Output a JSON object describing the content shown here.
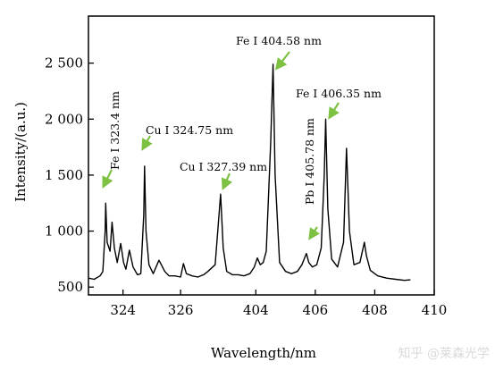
{
  "chart_data": {
    "type": "line",
    "xlabel": "Wavelength/nm",
    "ylabel": "Intensity/(a.u.)",
    "title": "",
    "x_ticks": [
      "324",
      "326",
      "404",
      "406",
      "408",
      "410"
    ],
    "y_ticks": [
      "500",
      "1 000",
      "1 500",
      "2 000",
      "2 500"
    ],
    "ylim": [
      430,
      2920
    ],
    "axis_break": "between 326 and 404 nm",
    "grid": false,
    "legend": "none",
    "series": [
      {
        "color": "#000000",
        "segments": [
          {
            "points": [
              [
                322.8,
                580
              ],
              [
                323.0,
                570
              ],
              [
                323.2,
                600
              ],
              [
                323.3,
                640
              ],
              [
                323.38,
                1000
              ],
              [
                323.4,
                1250
              ],
              [
                323.45,
                900
              ],
              [
                323.55,
                820
              ],
              [
                323.62,
                1080
              ],
              [
                323.7,
                850
              ],
              [
                323.8,
                720
              ],
              [
                323.92,
                890
              ],
              [
                324.02,
                720
              ],
              [
                324.1,
                660
              ],
              [
                324.22,
                830
              ],
              [
                324.35,
                680
              ],
              [
                324.5,
                610
              ],
              [
                324.62,
                620
              ],
              [
                324.72,
                1150
              ],
              [
                324.75,
                1580
              ],
              [
                324.8,
                1000
              ],
              [
                324.9,
                700
              ],
              [
                325.05,
                620
              ],
              [
                325.15,
                680
              ],
              [
                325.25,
                740
              ],
              [
                325.35,
                690
              ],
              [
                325.45,
                640
              ],
              [
                325.6,
                600
              ],
              [
                325.8,
                600
              ],
              [
                326.0,
                590
              ],
              [
                326.1,
                710
              ],
              [
                326.2,
                620
              ],
              [
                326.4,
                600
              ]
            ]
          },
          {
            "points": [
              [
                326.4,
                600
              ],
              [
                326.6,
                590
              ],
              [
                326.8,
                610
              ],
              [
                326.95,
                640
              ],
              [
                327.2,
                700
              ],
              [
                327.39,
                1330
              ],
              [
                327.48,
                850
              ],
              [
                327.6,
                640
              ],
              [
                327.8,
                610
              ],
              [
                328.0,
                610
              ],
              [
                328.2,
                600
              ]
            ]
          },
          {
            "points": [
              [
                403.6,
                600
              ],
              [
                403.8,
                620
              ],
              [
                403.95,
                680
              ],
              [
                404.05,
                760
              ],
              [
                404.15,
                700
              ],
              [
                404.25,
                720
              ],
              [
                404.35,
                820
              ],
              [
                404.5,
                1800
              ],
              [
                404.58,
                2490
              ],
              [
                404.65,
                1500
              ],
              [
                404.8,
                720
              ],
              [
                405.0,
                640
              ],
              [
                405.2,
                620
              ],
              [
                405.4,
                640
              ],
              [
                405.55,
                700
              ],
              [
                405.7,
                800
              ],
              [
                405.78,
                720
              ],
              [
                405.9,
                680
              ],
              [
                406.05,
                700
              ],
              [
                406.2,
                850
              ],
              [
                406.3,
                1500
              ],
              [
                406.35,
                2000
              ],
              [
                406.42,
                1200
              ],
              [
                406.55,
                750
              ],
              [
                406.75,
                680
              ],
              [
                406.95,
                900
              ],
              [
                407.05,
                1740
              ],
              [
                407.15,
                1000
              ],
              [
                407.3,
                700
              ],
              [
                407.5,
                720
              ],
              [
                407.65,
                900
              ],
              [
                407.72,
                780
              ],
              [
                407.85,
                650
              ],
              [
                408.1,
                600
              ],
              [
                408.4,
                580
              ],
              [
                408.7,
                570
              ],
              [
                409.0,
                560
              ],
              [
                409.2,
                565
              ]
            ]
          }
        ]
      }
    ],
    "annotations": [
      {
        "text": "Fe I 323.4 nm",
        "x": 323.4,
        "y": 1250,
        "orientation": "vertical"
      },
      {
        "text": "Cu I 324.75 nm",
        "x": 324.75,
        "y": 1580,
        "orientation": "horizontal"
      },
      {
        "text": "Cu I 327.39 nm",
        "x": 327.39,
        "y": 1330,
        "orientation": "horizontal"
      },
      {
        "text": "Fe I 404.58 nm",
        "x": 404.58,
        "y": 2490,
        "orientation": "horizontal"
      },
      {
        "text": "Pb I 405.78 nm",
        "x": 405.78,
        "y": 800,
        "orientation": "vertical"
      },
      {
        "text": "Fe I 406.35 nm",
        "x": 406.35,
        "y": 2000,
        "orientation": "horizontal"
      }
    ],
    "arrow_color": "#7cc142"
  },
  "watermark": "知乎 @莱森光学"
}
